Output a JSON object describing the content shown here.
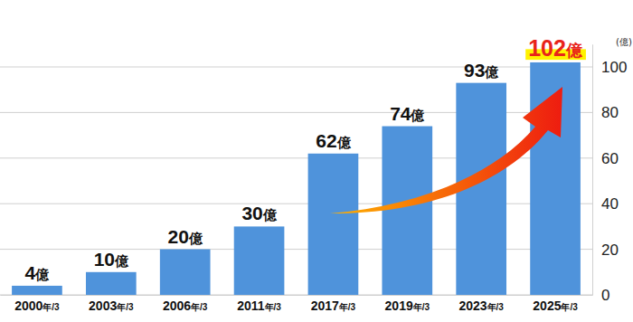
{
  "chart_data": {
    "type": "bar",
    "categories": [
      "2000年/3",
      "2003年/3",
      "2006年/3",
      "2011年/3",
      "2017年/3",
      "2019年/3",
      "2023年/3",
      "2025年/3"
    ],
    "values": [
      4,
      10,
      20,
      30,
      62,
      74,
      93,
      102
    ],
    "value_labels": [
      "4億",
      "10億",
      "20億",
      "30億",
      "62億",
      "74億",
      "93億",
      "102億"
    ],
    "color": "#4f93db",
    "y_label": "(億)",
    "ylim": [
      0,
      110
    ],
    "yticks": [
      0,
      20,
      40,
      60,
      80,
      100
    ],
    "grid": true,
    "data_labels": true
  }
}
